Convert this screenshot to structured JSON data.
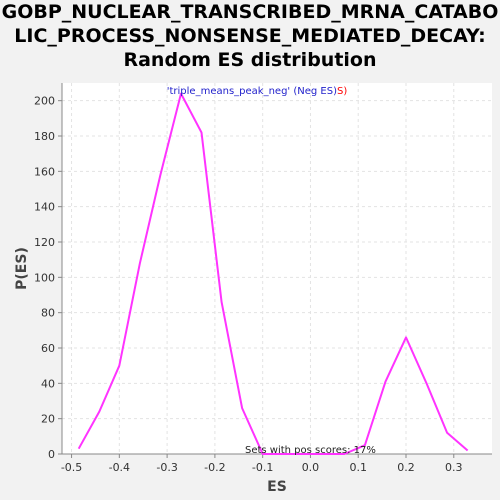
{
  "title_lines": [
    "GOBP_NUCLEAR_TRANSCRIBED_MRNA_CATABO",
    "LIC_PROCESS_NONSENSE_MEDIATED_DECAY:",
    "Random ES distribution"
  ],
  "colors": {
    "background": "#f2f2f2",
    "plot_background": "#ffffff",
    "line": "#ff33ff",
    "grid": "#e3e3e3",
    "legend_name": "#2222cc",
    "legend_red": "#ff0000"
  },
  "chart_data": {
    "type": "line",
    "xlabel": "ES",
    "ylabel": "P(ES)",
    "xlim": [
      -0.52,
      0.38
    ],
    "ylim": [
      0,
      210
    ],
    "grid": true,
    "xticks": [
      -0.5,
      -0.4,
      -0.3,
      -0.2,
      -0.1,
      0.0,
      0.1,
      0.2,
      0.3
    ],
    "xtick_labels": [
      "-0.5",
      "-0.4",
      "-0.3",
      "-0.2",
      "-0.1",
      "0.0",
      "0.1",
      "0.2",
      "0.3"
    ],
    "yticks": [
      0,
      20,
      40,
      60,
      80,
      100,
      120,
      140,
      160,
      180,
      200
    ],
    "ytick_labels": [
      "0",
      "20",
      "40",
      "60",
      "80",
      "100",
      "120",
      "140",
      "160",
      "180",
      "200"
    ],
    "legend": {
      "name": "'triple_means_peak_neg'",
      "qualifier": " (Neg ES)",
      "suffix_red": "S)",
      "placement": "top-center"
    },
    "annotation": "Sets with pos scores: 17%",
    "series": [
      {
        "x": [
          -0.485,
          -0.442,
          -0.4,
          -0.357,
          -0.314,
          -0.271,
          -0.228,
          -0.186,
          -0.143,
          -0.1,
          -0.057,
          -0.014,
          0.029,
          0.071,
          0.114,
          0.157,
          0.2,
          0.243,
          0.286,
          0.329
        ],
        "values": [
          3,
          24,
          50,
          108,
          158,
          204,
          182,
          86,
          26,
          0,
          0,
          0,
          0,
          0,
          5,
          41,
          66,
          40,
          12,
          2
        ]
      }
    ]
  }
}
